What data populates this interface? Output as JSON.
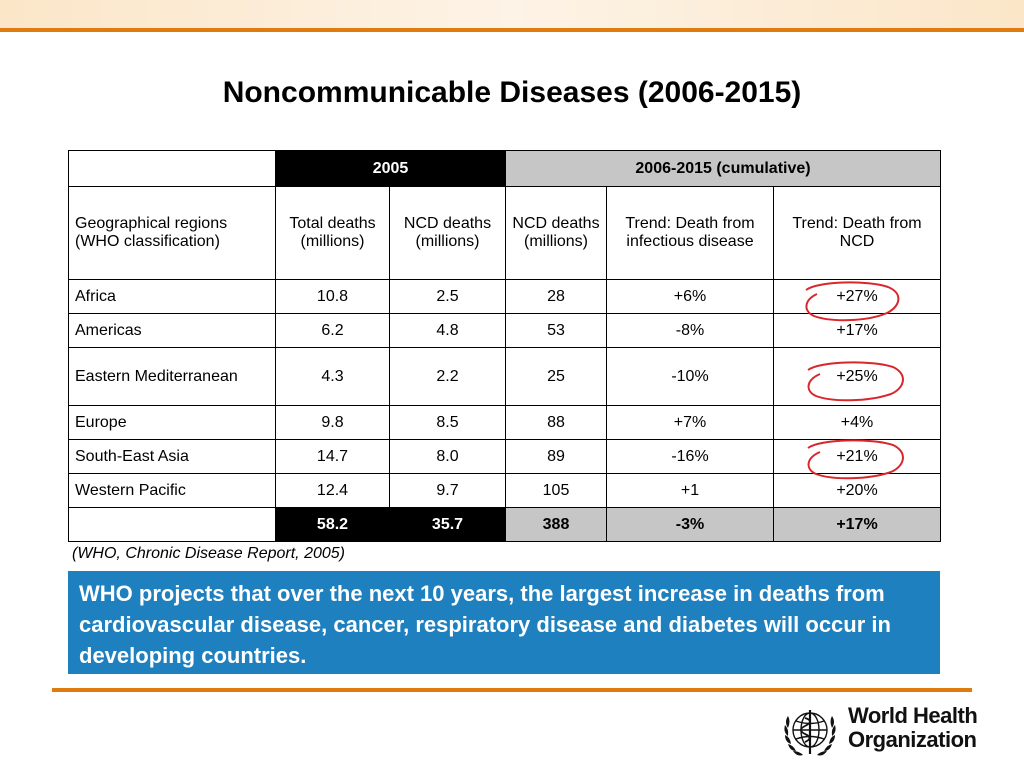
{
  "slide": {
    "title": "Noncommunicable Diseases (2006-2015)",
    "source": "(WHO, Chronic Disease Report, 2005)",
    "callout": "WHO projects that over the next 10 years, the largest increase in deaths from cardiovascular disease, cancer, respiratory disease and diabetes will occur in developing countries."
  },
  "table": {
    "group_headers": {
      "year": "2005",
      "cumulative": "2006-2015 (cumulative)"
    },
    "columns": {
      "region": "Geographical regions (WHO classification)",
      "total": "Total deaths (millions)",
      "ncd_2005": "NCD deaths (millions)",
      "ncd_cum": "NCD deaths (millions)",
      "trend_infectious": "Trend: Death from infectious disease",
      "trend_ncd": "Trend: Death from NCD"
    },
    "rows": [
      {
        "region": "Africa",
        "total": "10.8",
        "ncd_2005": "2.5",
        "ncd_cum": "28",
        "trend_infectious": "+6%",
        "trend_ncd": "+27%"
      },
      {
        "region": "Americas",
        "total": "6.2",
        "ncd_2005": "4.8",
        "ncd_cum": "53",
        "trend_infectious": "-8%",
        "trend_ncd": "+17%"
      },
      {
        "region": "Eastern Mediterranean",
        "total": "4.3",
        "ncd_2005": "2.2",
        "ncd_cum": "25",
        "trend_infectious": "-10%",
        "trend_ncd": "+25%"
      },
      {
        "region": "Europe",
        "total": "9.8",
        "ncd_2005": "8.5",
        "ncd_cum": "88",
        "trend_infectious": "+7%",
        "trend_ncd": "+4%"
      },
      {
        "region": "South-East Asia",
        "total": "14.7",
        "ncd_2005": "8.0",
        "ncd_cum": "89",
        "trend_infectious": "-16%",
        "trend_ncd": "+21%"
      },
      {
        "region": "Western Pacific",
        "total": "12.4",
        "ncd_2005": "9.7",
        "ncd_cum": "105",
        "trend_infectious": "+1",
        "trend_ncd": "+20%"
      }
    ],
    "totals": {
      "total": "58.2",
      "ncd_2005": "35.7",
      "ncd_cum": "388",
      "trend_infectious": "-3%",
      "trend_ncd": "+17%"
    }
  },
  "logo": {
    "line1": "World Health",
    "line2": "Organization"
  },
  "colors": {
    "accent_orange": "#e07b10",
    "callout_blue": "#1f80bf",
    "annotation_red": "#d9262c",
    "header_grey": "#c6c6c6"
  },
  "icons": {
    "logo": "who-emblem-icon"
  }
}
